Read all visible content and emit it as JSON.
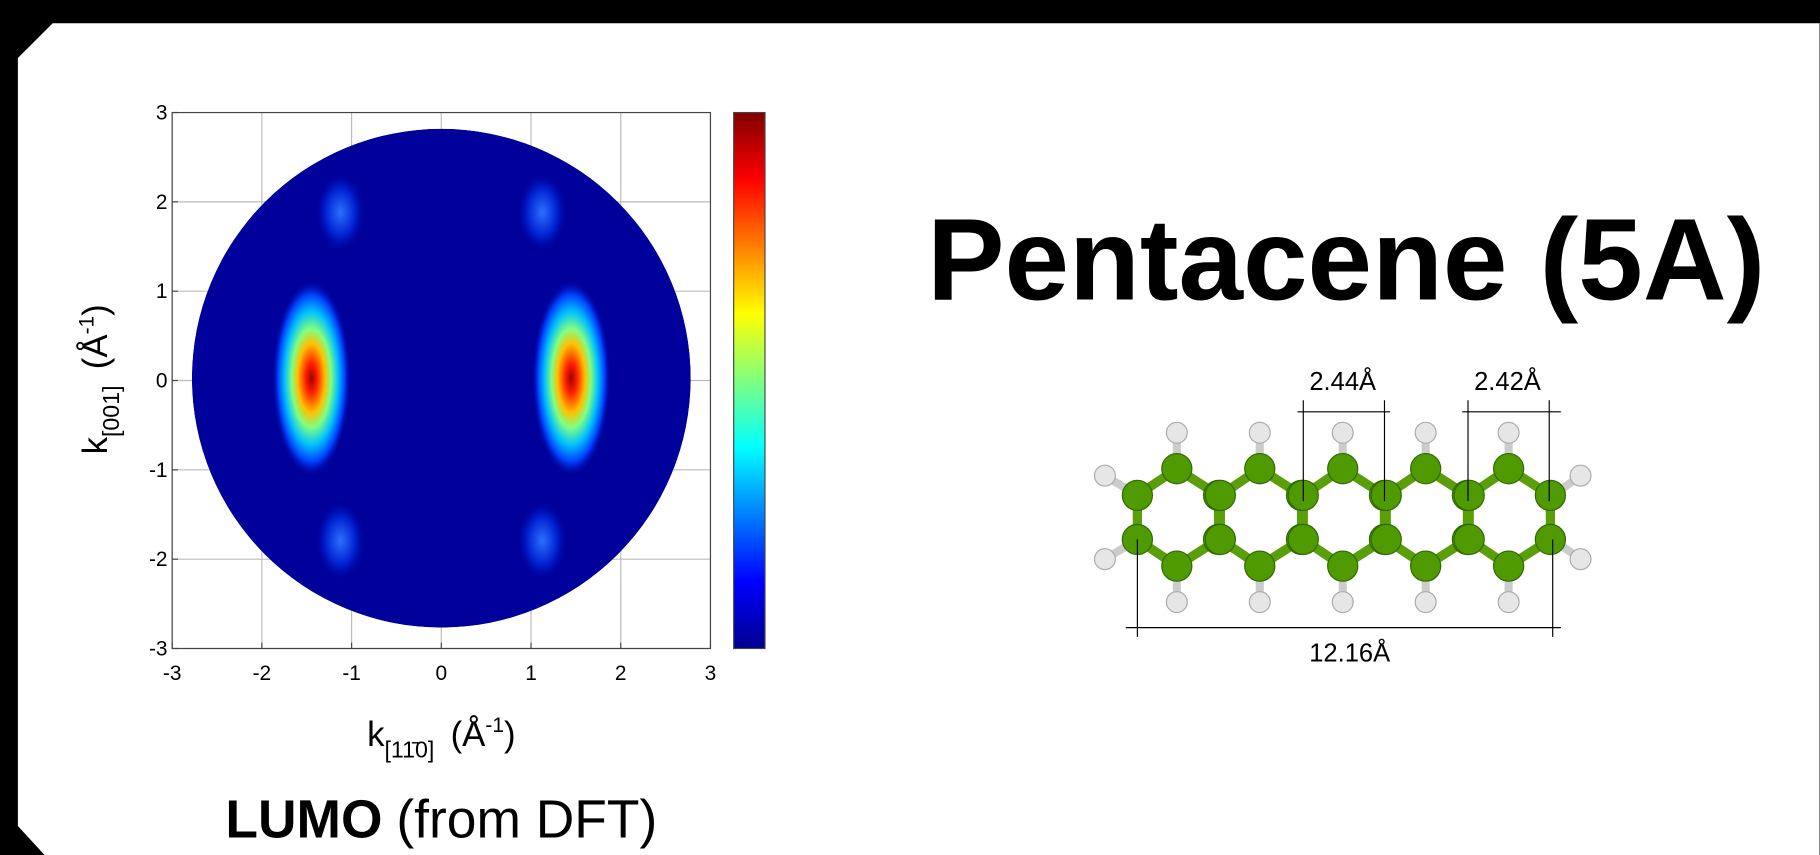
{
  "title": "Pentacene (5A)",
  "plot": {
    "xlim": [
      -3,
      3
    ],
    "ylim": [
      -3,
      3
    ],
    "xticks": [
      -3,
      -2,
      -1,
      0,
      1,
      2,
      3
    ],
    "yticks": [
      -3,
      -2,
      -1,
      0,
      1,
      2,
      3
    ],
    "x_label": {
      "symbol": "k",
      "subscript": "[11̄0]",
      "unit": "(Å",
      "unit_sup": "-1",
      "close": ")"
    },
    "y_label": {
      "symbol": "k",
      "subscript": "[001]",
      "unit": "(Å",
      "unit_sup": "-1",
      "close": ")"
    }
  },
  "caption": {
    "bold": "LUMO",
    "rest": "(from DFT)"
  },
  "molecule": {
    "dimensions": [
      "2.44Å",
      "2.42Å",
      "12.16Å"
    ]
  }
}
